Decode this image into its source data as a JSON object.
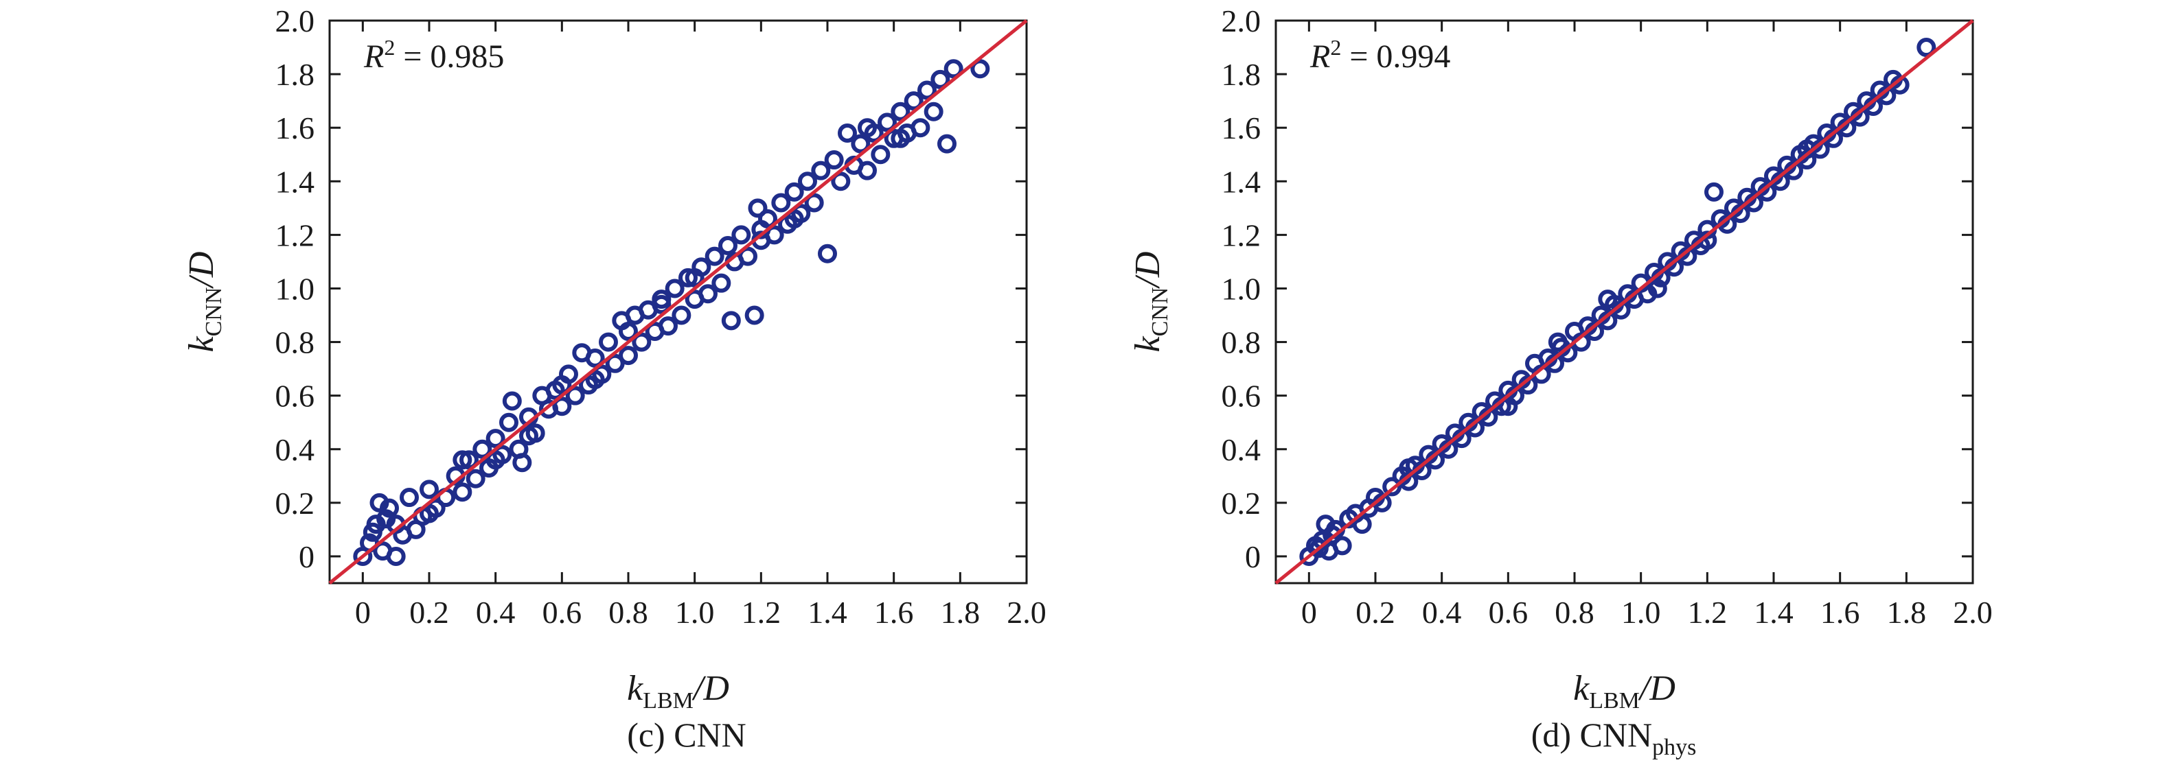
{
  "chart_data": [
    {
      "type": "scatter",
      "caption_prefix": "(c) CNN",
      "caption_sub": "",
      "r2_var": "R",
      "r2_exp": "2",
      "r2_value": " = 0.985",
      "xlabel_var": "k",
      "xlabel_sub": "LBM",
      "xlabel_tail": "/D",
      "ylabel_var": "k",
      "ylabel_sub": "CNN",
      "ylabel_tail": "/D",
      "xlim": [
        -0.1,
        2.0
      ],
      "ylim": [
        -0.1,
        2.0
      ],
      "xticks": [
        "0",
        "0.2",
        "0.4",
        "0.6",
        "0.8",
        "1.0",
        "1.2",
        "1.4",
        "1.6",
        "1.8",
        "2.0"
      ],
      "yticks": [
        "0",
        "0.2",
        "0.4",
        "0.6",
        "0.8",
        "1.0",
        "1.2",
        "1.4",
        "1.6",
        "1.8",
        "2.0"
      ],
      "reference_line": [
        [
          -0.1,
          -0.1
        ],
        [
          2.0,
          2.0
        ]
      ],
      "colors": {
        "points": "#1f2d8a",
        "line": "#d42a3a"
      },
      "points": [
        [
          0.0,
          0.0
        ],
        [
          0.02,
          0.05
        ],
        [
          0.04,
          0.12
        ],
        [
          0.06,
          0.02
        ],
        [
          0.08,
          0.18
        ],
        [
          0.1,
          0.0
        ],
        [
          0.12,
          0.08
        ],
        [
          0.05,
          0.2
        ],
        [
          0.07,
          0.14
        ],
        [
          0.03,
          0.09
        ],
        [
          0.14,
          0.22
        ],
        [
          0.16,
          0.1
        ],
        [
          0.18,
          0.15
        ],
        [
          0.2,
          0.25
        ],
        [
          0.22,
          0.18
        ],
        [
          0.25,
          0.22
        ],
        [
          0.28,
          0.3
        ],
        [
          0.3,
          0.24
        ],
        [
          0.32,
          0.36
        ],
        [
          0.34,
          0.29
        ],
        [
          0.36,
          0.4
        ],
        [
          0.38,
          0.33
        ],
        [
          0.4,
          0.44
        ],
        [
          0.42,
          0.38
        ],
        [
          0.44,
          0.5
        ],
        [
          0.45,
          0.58
        ],
        [
          0.47,
          0.4
        ],
        [
          0.48,
          0.35
        ],
        [
          0.5,
          0.52
        ],
        [
          0.52,
          0.46
        ],
        [
          0.54,
          0.6
        ],
        [
          0.56,
          0.55
        ],
        [
          0.58,
          0.62
        ],
        [
          0.6,
          0.56
        ],
        [
          0.62,
          0.68
        ],
        [
          0.64,
          0.6
        ],
        [
          0.66,
          0.76
        ],
        [
          0.68,
          0.64
        ],
        [
          0.7,
          0.74
        ],
        [
          0.72,
          0.68
        ],
        [
          0.74,
          0.8
        ],
        [
          0.76,
          0.72
        ],
        [
          0.78,
          0.88
        ],
        [
          0.8,
          0.75
        ],
        [
          0.82,
          0.9
        ],
        [
          0.84,
          0.8
        ],
        [
          0.86,
          0.92
        ],
        [
          0.88,
          0.84
        ],
        [
          0.9,
          0.96
        ],
        [
          0.92,
          0.86
        ],
        [
          0.94,
          1.0
        ],
        [
          0.96,
          0.9
        ],
        [
          0.98,
          1.04
        ],
        [
          1.0,
          0.96
        ],
        [
          1.02,
          1.08
        ],
        [
          1.04,
          0.98
        ],
        [
          1.06,
          1.12
        ],
        [
          1.08,
          1.02
        ],
        [
          1.1,
          1.16
        ],
        [
          1.11,
          0.88
        ],
        [
          1.12,
          1.1
        ],
        [
          1.14,
          1.2
        ],
        [
          1.16,
          1.12
        ],
        [
          1.18,
          0.9
        ],
        [
          1.19,
          1.3
        ],
        [
          1.2,
          1.18
        ],
        [
          1.22,
          1.26
        ],
        [
          1.24,
          1.2
        ],
        [
          1.26,
          1.32
        ],
        [
          1.28,
          1.24
        ],
        [
          1.3,
          1.36
        ],
        [
          1.32,
          1.28
        ],
        [
          1.34,
          1.4
        ],
        [
          1.36,
          1.32
        ],
        [
          1.38,
          1.44
        ],
        [
          1.4,
          1.13
        ],
        [
          1.42,
          1.48
        ],
        [
          1.44,
          1.4
        ],
        [
          1.46,
          1.58
        ],
        [
          1.48,
          1.46
        ],
        [
          1.5,
          1.54
        ],
        [
          1.52,
          1.44
        ],
        [
          1.54,
          1.58
        ],
        [
          1.56,
          1.5
        ],
        [
          1.58,
          1.62
        ],
        [
          1.6,
          1.56
        ],
        [
          1.62,
          1.66
        ],
        [
          1.64,
          1.58
        ],
        [
          1.66,
          1.7
        ],
        [
          1.68,
          1.6
        ],
        [
          1.7,
          1.74
        ],
        [
          1.72,
          1.66
        ],
        [
          1.74,
          1.78
        ],
        [
          1.76,
          1.54
        ],
        [
          1.78,
          1.82
        ],
        [
          1.86,
          1.82
        ],
        [
          1.62,
          1.56
        ],
        [
          1.52,
          1.6
        ],
        [
          0.3,
          0.36
        ],
        [
          0.5,
          0.45
        ],
        [
          0.7,
          0.66
        ],
        [
          0.9,
          0.94
        ],
        [
          1.0,
          1.04
        ],
        [
          1.2,
          1.22
        ],
        [
          0.6,
          0.64
        ],
        [
          0.4,
          0.36
        ],
        [
          0.2,
          0.16
        ],
        [
          0.1,
          0.12
        ],
        [
          1.3,
          1.26
        ],
        [
          0.8,
          0.84
        ]
      ]
    },
    {
      "type": "scatter",
      "caption_prefix": "(d) CNN",
      "caption_sub": "phys",
      "r2_var": "R",
      "r2_exp": "2",
      "r2_value": " = 0.994",
      "xlabel_var": "k",
      "xlabel_sub": "LBM",
      "xlabel_tail": "/D",
      "ylabel_var": "k",
      "ylabel_sub": "CNN",
      "ylabel_tail": "/D",
      "xlim": [
        -0.1,
        2.0
      ],
      "ylim": [
        -0.1,
        2.0
      ],
      "xticks": [
        "0",
        "0.2",
        "0.4",
        "0.6",
        "0.8",
        "1.0",
        "1.2",
        "1.4",
        "1.6",
        "1.8",
        "2.0"
      ],
      "yticks": [
        "0",
        "0.2",
        "0.4",
        "0.6",
        "0.8",
        "1.0",
        "1.2",
        "1.4",
        "1.6",
        "1.8",
        "2.0"
      ],
      "reference_line": [
        [
          -0.1,
          -0.1
        ],
        [
          2.0,
          2.0
        ]
      ],
      "colors": {
        "points": "#1f2d8a",
        "line": "#d42a3a"
      },
      "points": [
        [
          0.0,
          0.0
        ],
        [
          0.02,
          0.04
        ],
        [
          0.04,
          0.06
        ],
        [
          0.06,
          0.02
        ],
        [
          0.08,
          0.1
        ],
        [
          0.1,
          0.04
        ],
        [
          0.12,
          0.14
        ],
        [
          0.05,
          0.12
        ],
        [
          0.07,
          0.08
        ],
        [
          0.03,
          0.03
        ],
        [
          0.14,
          0.16
        ],
        [
          0.16,
          0.12
        ],
        [
          0.18,
          0.18
        ],
        [
          0.2,
          0.22
        ],
        [
          0.22,
          0.2
        ],
        [
          0.25,
          0.26
        ],
        [
          0.28,
          0.3
        ],
        [
          0.3,
          0.28
        ],
        [
          0.32,
          0.34
        ],
        [
          0.34,
          0.32
        ],
        [
          0.36,
          0.38
        ],
        [
          0.38,
          0.36
        ],
        [
          0.4,
          0.42
        ],
        [
          0.42,
          0.4
        ],
        [
          0.44,
          0.46
        ],
        [
          0.46,
          0.44
        ],
        [
          0.48,
          0.5
        ],
        [
          0.5,
          0.48
        ],
        [
          0.52,
          0.54
        ],
        [
          0.54,
          0.52
        ],
        [
          0.56,
          0.58
        ],
        [
          0.58,
          0.56
        ],
        [
          0.6,
          0.62
        ],
        [
          0.62,
          0.6
        ],
        [
          0.64,
          0.66
        ],
        [
          0.66,
          0.64
        ],
        [
          0.68,
          0.72
        ],
        [
          0.7,
          0.68
        ],
        [
          0.72,
          0.74
        ],
        [
          0.74,
          0.72
        ],
        [
          0.76,
          0.78
        ],
        [
          0.78,
          0.76
        ],
        [
          0.8,
          0.84
        ],
        [
          0.82,
          0.8
        ],
        [
          0.84,
          0.86
        ],
        [
          0.86,
          0.84
        ],
        [
          0.88,
          0.9
        ],
        [
          0.9,
          0.88
        ],
        [
          0.92,
          0.94
        ],
        [
          0.94,
          0.92
        ],
        [
          0.96,
          0.98
        ],
        [
          0.98,
          0.96
        ],
        [
          1.0,
          1.02
        ],
        [
          1.02,
          0.98
        ],
        [
          1.04,
          1.06
        ],
        [
          1.06,
          1.04
        ],
        [
          1.08,
          1.1
        ],
        [
          1.1,
          1.08
        ],
        [
          1.12,
          1.14
        ],
        [
          1.14,
          1.12
        ],
        [
          1.16,
          1.18
        ],
        [
          1.18,
          1.16
        ],
        [
          1.2,
          1.22
        ],
        [
          1.22,
          1.36
        ],
        [
          1.24,
          1.26
        ],
        [
          1.26,
          1.24
        ],
        [
          1.28,
          1.3
        ],
        [
          1.3,
          1.28
        ],
        [
          1.32,
          1.34
        ],
        [
          1.34,
          1.32
        ],
        [
          1.36,
          1.38
        ],
        [
          1.38,
          1.36
        ],
        [
          1.4,
          1.42
        ],
        [
          1.42,
          1.4
        ],
        [
          1.44,
          1.46
        ],
        [
          1.46,
          1.44
        ],
        [
          1.48,
          1.5
        ],
        [
          1.5,
          1.48
        ],
        [
          1.52,
          1.54
        ],
        [
          1.54,
          1.52
        ],
        [
          1.56,
          1.58
        ],
        [
          1.58,
          1.56
        ],
        [
          1.6,
          1.62
        ],
        [
          1.62,
          1.6
        ],
        [
          1.64,
          1.66
        ],
        [
          1.66,
          1.64
        ],
        [
          1.68,
          1.7
        ],
        [
          1.7,
          1.68
        ],
        [
          1.72,
          1.74
        ],
        [
          1.74,
          1.72
        ],
        [
          1.76,
          1.78
        ],
        [
          1.78,
          1.76
        ],
        [
          1.86,
          1.9
        ],
        [
          0.9,
          0.96
        ],
        [
          0.6,
          0.56
        ],
        [
          0.3,
          0.33
        ],
        [
          1.2,
          1.18
        ],
        [
          1.5,
          1.52
        ],
        [
          0.75,
          0.8
        ],
        [
          1.05,
          1.0
        ]
      ]
    }
  ]
}
